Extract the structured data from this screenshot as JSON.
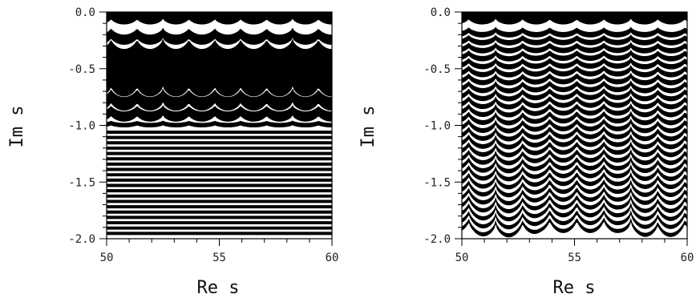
{
  "chart_data": [
    {
      "type": "heatmap",
      "panel": "left",
      "xlabel": "Re s",
      "ylabel": "Im s",
      "xlim": [
        50,
        60
      ],
      "ylim": [
        -2.0,
        0.0
      ],
      "xticks": [
        50,
        55,
        60
      ],
      "xtick_labels": [
        "50",
        "55",
        "60"
      ],
      "yticks": [
        0.0,
        -0.5,
        -1.0,
        -1.5,
        -2.0
      ],
      "ytick_labels": [
        "0.0",
        "-0.5",
        "-1.0",
        "-1.5",
        "-2.0"
      ],
      "grid": false,
      "pattern": {
        "wavy_upper_band_count": 7,
        "wavy_region_bottom": -1.05,
        "wavy_period": 1.15,
        "straight_band_count": 20,
        "straight_band_spacing": 0.047
      }
    },
    {
      "type": "heatmap",
      "panel": "right",
      "xlabel": "Re s",
      "ylabel": "Im s",
      "xlim": [
        50,
        60
      ],
      "ylim": [
        -2.0,
        0.0
      ],
      "xticks": [
        50,
        55,
        60
      ],
      "xtick_labels": [
        "50",
        "55",
        "60"
      ],
      "yticks": [
        0.0,
        -0.5,
        -1.0,
        -1.5,
        -2.0
      ],
      "ytick_labels": [
        "0.0",
        "-0.5",
        "-1.0",
        "-1.5",
        "-2.0"
      ],
      "grid": false,
      "pattern": {
        "wavy_band_count": 26,
        "wavy_period": 1.2,
        "wave_grows_with_depth": true
      }
    }
  ]
}
